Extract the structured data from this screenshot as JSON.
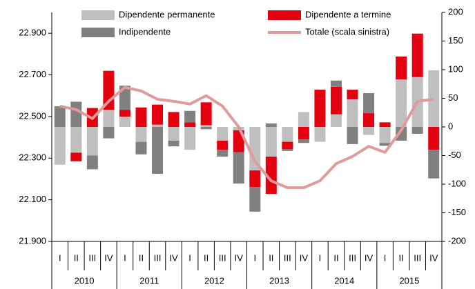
{
  "chart_data": {
    "type": "bar",
    "categories": [
      "I",
      "II",
      "III",
      "IV",
      "I",
      "II",
      "III",
      "IV",
      "I",
      "II",
      "III",
      "IV",
      "I",
      "II",
      "III",
      "IV",
      "I",
      "II",
      "III",
      "IV",
      "I",
      "II",
      "III",
      "IV"
    ],
    "groups": [
      "2010",
      "2011",
      "2012",
      "2013",
      "2014",
      "2015"
    ],
    "stacked": true,
    "series": [
      {
        "name": "Dipendente permanente",
        "color": "#bfbfbf",
        "axis": "y2",
        "values": [
          -66,
          -45,
          -50,
          30,
          18,
          -26,
          4,
          -24,
          -40,
          3,
          -24,
          -6,
          -76,
          -52,
          -26,
          26,
          -26,
          22,
          48,
          -14,
          -28,
          83,
          87,
          99
        ]
      },
      {
        "name": "Dipendente a termine",
        "color": "#e3000f",
        "axis": "y2",
        "values": [
          0,
          -15,
          33,
          68,
          12,
          34,
          35,
          26,
          8,
          40,
          -16,
          -38,
          -29,
          -65,
          -13,
          -22,
          65,
          48,
          17,
          24,
          8,
          40,
          76,
          -40
        ]
      },
      {
        "name": "Indipendente",
        "color": "#808080",
        "axis": "y2",
        "values": [
          36,
          44,
          -24,
          -20,
          42,
          -22,
          -82,
          -10,
          20,
          -4,
          -12,
          -55,
          -43,
          6,
          -3,
          -6,
          0,
          11,
          -30,
          35,
          -5,
          -24,
          -12,
          -50
        ]
      },
      {
        "name": "Totale (scala sinistra)",
        "color": "#e09a9a",
        "type": "line",
        "values": [
          22550,
          22533,
          22490,
          22573,
          22640,
          22623,
          22583,
          22573,
          22560,
          22600,
          22550,
          22450,
          22284,
          22191,
          22158,
          22158,
          22191,
          22274,
          22308,
          22357,
          22328,
          22434,
          22573,
          22583
        ]
      }
    ],
    "ylim": [
      21900,
      23000
    ],
    "yticks": [
      {
        "value": 21900,
        "label": "21.900"
      },
      {
        "value": 22100,
        "label": "22.100"
      },
      {
        "value": 22300,
        "label": "22.300"
      },
      {
        "value": 22500,
        "label": "22.500"
      },
      {
        "value": 22700,
        "label": "22.700"
      },
      {
        "value": 22900,
        "label": "22.900"
      }
    ],
    "y2lim": [
      -200,
      200
    ],
    "y2ticks": [
      -200,
      -150,
      -100,
      -50,
      0,
      50,
      100,
      150,
      200
    ]
  }
}
